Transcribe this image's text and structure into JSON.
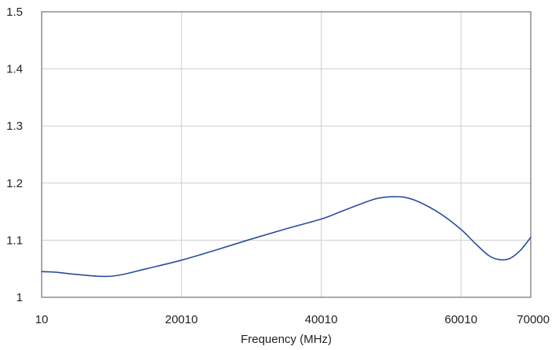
{
  "chart_data": {
    "type": "line",
    "title": "",
    "xlabel": "Frequency (MHz)",
    "ylabel": "",
    "xlim": [
      10,
      70000
    ],
    "ylim": [
      1,
      1.5
    ],
    "x_ticks": [
      10,
      20010,
      40010,
      60010,
      70000
    ],
    "x_tick_labels": [
      "10",
      "20010",
      "40010",
      "60010",
      "70000"
    ],
    "y_ticks": [
      1,
      1.1,
      1.2,
      1.3,
      1.4,
      1.5
    ],
    "y_tick_labels": [
      "1",
      "1.1",
      "1.2",
      "1.3",
      "1.4",
      "1.5"
    ],
    "grid": true,
    "legend": "none",
    "series": [
      {
        "color": "#2a4d9c",
        "x": [
          10,
          2000,
          5000,
          8000,
          10000,
          12000,
          15000,
          20010,
          25000,
          30000,
          35000,
          40010,
          43000,
          46000,
          48000,
          50000,
          52000,
          54000,
          57000,
          60010,
          62000,
          64000,
          65500,
          67000,
          68500,
          70000
        ],
        "y": [
          1.045,
          1.044,
          1.04,
          1.037,
          1.037,
          1.041,
          1.05,
          1.065,
          1.083,
          1.102,
          1.12,
          1.137,
          1.151,
          1.165,
          1.173,
          1.176,
          1.175,
          1.167,
          1.147,
          1.119,
          1.095,
          1.073,
          1.066,
          1.068,
          1.082,
          1.105
        ]
      }
    ]
  }
}
